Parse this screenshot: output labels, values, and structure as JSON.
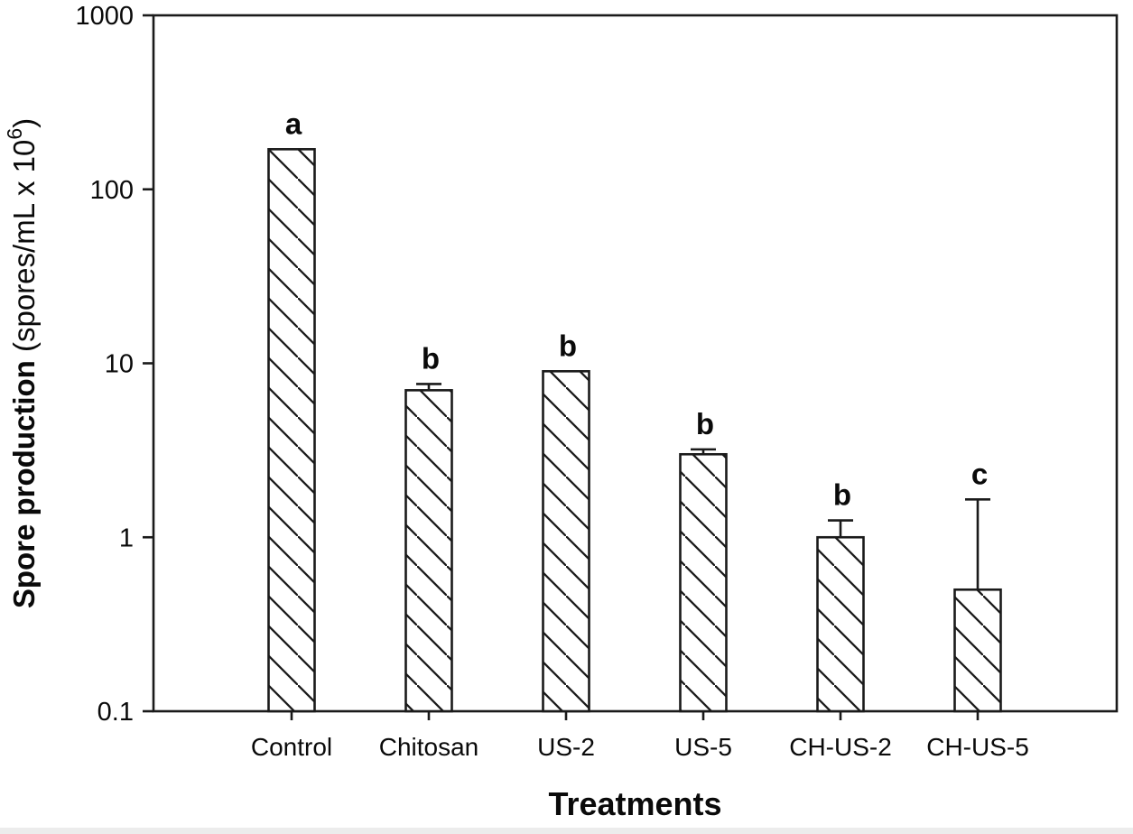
{
  "figure": {
    "background": "#ffffff",
    "bottom_strip_color": "#ececec",
    "line_color": "#1a1a1a",
    "text_color": "#0a0a0a"
  },
  "chart_data": {
    "type": "bar",
    "title": "",
    "xlabel": "Treatments",
    "ylabel": "Spore production (spores/mL x 10^6)",
    "ylabel_bold_part": "Spore production",
    "ylabel_unit_prefix": " (spores/mL x 10",
    "ylabel_unit_superscript": "6",
    "ylabel_unit_suffix": ")",
    "y_scale": "log",
    "ylim": [
      0.1,
      1000
    ],
    "y_ticks": [
      {
        "value": 1000,
        "label": "1000"
      },
      {
        "value": 100,
        "label": "100"
      },
      {
        "value": 10,
        "label": "10"
      },
      {
        "value": 1,
        "label": "1"
      },
      {
        "value": 0.1,
        "label": "0.1"
      }
    ],
    "grid": false,
    "legend": false,
    "bar_style": {
      "fill": "diagonal-hatch",
      "hatch_direction": "\\",
      "hatch_spacing_px": 33,
      "stroke": "#1a1a1a",
      "bar_background": "#ffffff"
    },
    "categories": [
      "Control",
      "Chitosan",
      "US-2",
      "US-5",
      "CH-US-2",
      "CH-US-5"
    ],
    "series": [
      {
        "name": "Spore production",
        "values": [
          170,
          7,
          9,
          3,
          1,
          0.5
        ],
        "error_bar_top": [
          null,
          7.6,
          null,
          3.2,
          1.25,
          1.65
        ],
        "significance_letters": [
          "a",
          "b",
          "b",
          "b",
          "b",
          "c"
        ]
      }
    ]
  }
}
